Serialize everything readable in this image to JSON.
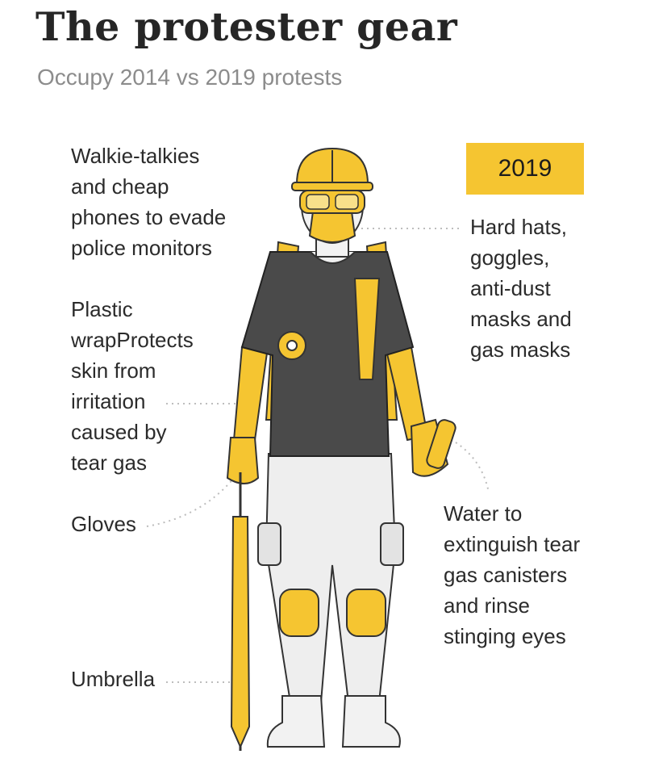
{
  "title": "The protester gear",
  "subtitle": "Occupy 2014 vs 2019 protests",
  "badge": {
    "year": "2019"
  },
  "colors": {
    "accent": "#f5c531",
    "shirt": "#4a4a4a",
    "text": "#2b2b2b",
    "subtitle": "#8c8c8c"
  },
  "labels": {
    "walkie": "Walkie-talkies\nand cheap\nphones to evade\npolice monitors",
    "plastic": "Plastic\nwrapProtects\nskin from\nirritation\ncaused by\ntear gas",
    "gloves": "Gloves",
    "umbrella": "Umbrella",
    "hardhats": "Hard hats,\ngoggles,\nanti-dust\nmasks and\ngas masks",
    "water": "Water to\nextinguish tear\ngas canisters\nand rinse\nstinging eyes"
  }
}
